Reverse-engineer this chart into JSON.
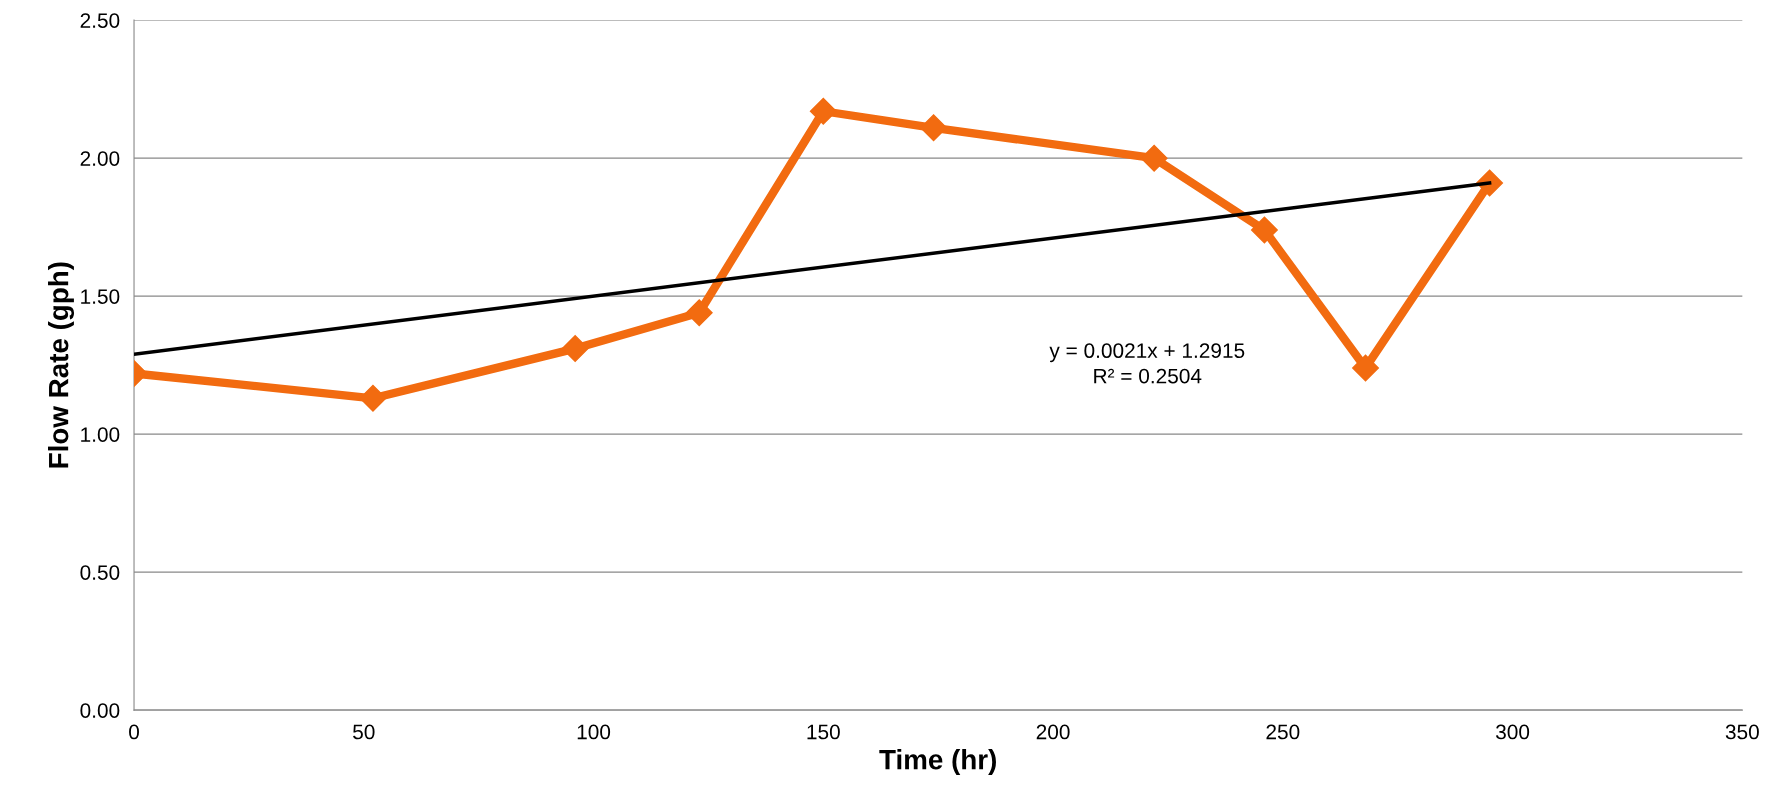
{
  "chart_data": {
    "type": "line",
    "xlabel": "Time (hr)",
    "ylabel": "Flow Rate (gph)",
    "xlim": [
      0,
      350
    ],
    "xticks": [
      0,
      50,
      100,
      150,
      200,
      250,
      300,
      350
    ],
    "ylim": [
      0,
      2.5
    ],
    "yticks": [
      {
        "value": 0,
        "label": "0.00"
      },
      {
        "value": 0.5,
        "label": "0.50"
      },
      {
        "value": 1,
        "label": "1.00"
      },
      {
        "value": 1.5,
        "label": "1.50"
      },
      {
        "value": 2,
        "label": "2.00"
      },
      {
        "value": 2.5,
        "label": "2.50"
      }
    ],
    "grid": "y",
    "legend": false,
    "series": [
      {
        "color": "#f26b10",
        "marker": "diamond",
        "line_style": "solid",
        "x": [
          0,
          52,
          96,
          123,
          150,
          174,
          222,
          246,
          268,
          295
        ],
        "values": [
          1.22,
          1.13,
          1.31,
          1.44,
          2.17,
          2.11,
          2.0,
          1.74,
          1.24,
          1.91
        ]
      },
      {
        "color": "#000000",
        "marker": "none",
        "line_style": "solid",
        "x": [
          0,
          295
        ],
        "values": [
          1.29,
          1.91
        ]
      }
    ],
    "annotations": [
      "y = 0.0021x + 1.2915\nR² = 0.2504"
    ]
  }
}
